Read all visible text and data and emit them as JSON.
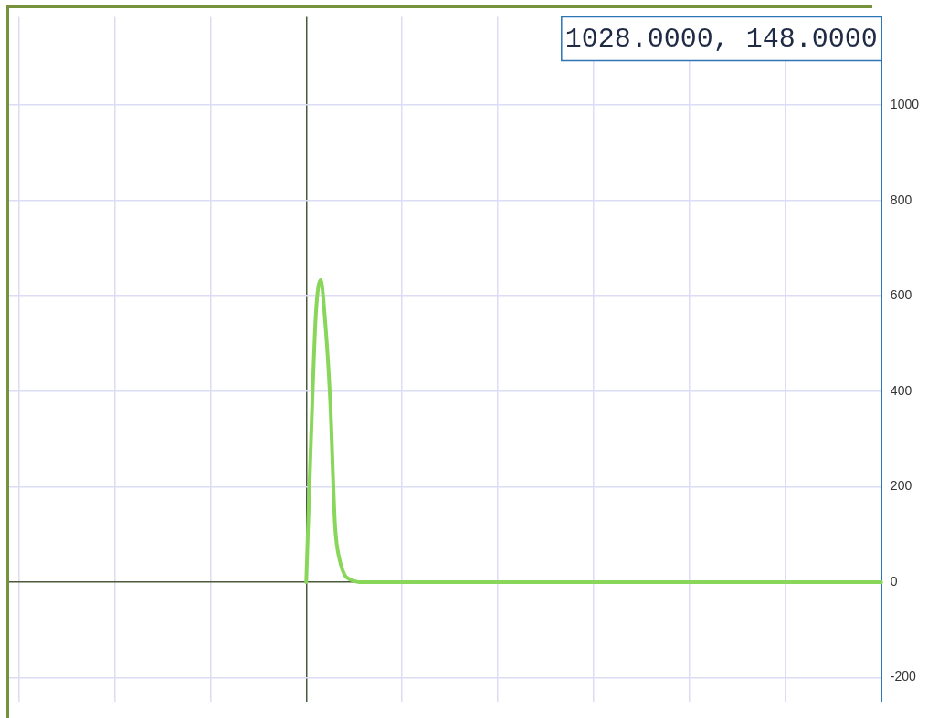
{
  "chart_data": {
    "type": "line",
    "categories": [
      null,
      null,
      null,
      null,
      null,
      null,
      null,
      null,
      null,
      null,
      null,
      null,
      null,
      null,
      null,
      null,
      null,
      null,
      null,
      null,
      null,
      null,
      null,
      null,
      null,
      null,
      null,
      null,
      null,
      null,
      null,
      null,
      null,
      null,
      null,
      null,
      null,
      null,
      null,
      null,
      null,
      null,
      null,
      null,
      null,
      null,
      null,
      null,
      null,
      null,
      null,
      null,
      null,
      null,
      null,
      null,
      null,
      null,
      null,
      null,
      null,
      null,
      null,
      null,
      null,
      null,
      null,
      null,
      null,
      null,
      null,
      null,
      null,
      null,
      null,
      null,
      null,
      null,
      null,
      null,
      null,
      null,
      null,
      null,
      null,
      null,
      null,
      null,
      null,
      null,
      null,
      null,
      null,
      null,
      null,
      null,
      null,
      null,
      null,
      null,
      null,
      null,
      null,
      null,
      null,
      null,
      null,
      null,
      null,
      null,
      null,
      null,
      null,
      null,
      null,
      null,
      null,
      null,
      null,
      null,
      null,
      null,
      null,
      null,
      null,
      null,
      null,
      null,
      null,
      null,
      null,
      null,
      null,
      null,
      null,
      null,
      null,
      null,
      null,
      null,
      null,
      null,
      null,
      null,
      null,
      null,
      null,
      null,
      null,
      null,
      null,
      null,
      null,
      null,
      null,
      null,
      null,
      null,
      null,
      null,
      null,
      null,
      null,
      null,
      null,
      null,
      null,
      null,
      null,
      null,
      null,
      null,
      null,
      null,
      null,
      null,
      null,
      null,
      null,
      null,
      null,
      null,
      null
    ],
    "series": [
      {
        "color": "#88d65a",
        "values": [
          null,
          null,
          null,
          null,
          null,
          null,
          null,
          null,
          null,
          null,
          null,
          null,
          null,
          null,
          null,
          null,
          null,
          null,
          null,
          null,
          null,
          null,
          null,
          null,
          null,
          null,
          null,
          null,
          null,
          null,
          null,
          null,
          null,
          null,
          null,
          null,
          null,
          null,
          null,
          null,
          null,
          null,
          null,
          null,
          null,
          null,
          null,
          null,
          null,
          null,
          null,
          null,
          null,
          null,
          null,
          null,
          null,
          null,
          null,
          null,
          null,
          null,
          0,
          300,
          560,
          633,
          540,
          380,
          120,
          45,
          15,
          6,
          2,
          0,
          0,
          0,
          0,
          0,
          0,
          0,
          0,
          0,
          0,
          0,
          0,
          0,
          0,
          0,
          0,
          0,
          0,
          0,
          0,
          0,
          0,
          0,
          0,
          0,
          0,
          0,
          0,
          0,
          0,
          0,
          0,
          0,
          0,
          0,
          0,
          0,
          0,
          0,
          0,
          0,
          0,
          0,
          0,
          0,
          0,
          0,
          0,
          0,
          0,
          0,
          0,
          0,
          0,
          0,
          0,
          0,
          0,
          0,
          0,
          0,
          0,
          0,
          0,
          0,
          0,
          0,
          0,
          0,
          0,
          0,
          0,
          0,
          0,
          0,
          0,
          0,
          0,
          0,
          0,
          0,
          0,
          0,
          0,
          0,
          0,
          0,
          0,
          0,
          0,
          0,
          0,
          0,
          0,
          0,
          0,
          0,
          0,
          0,
          0,
          0,
          0,
          0,
          0,
          0,
          0,
          0,
          0,
          0,
          0
        ]
      }
    ],
    "ylim": [
      -250,
      1185
    ],
    "yticks": [
      -200,
      0,
      200,
      400,
      600,
      800,
      1000
    ],
    "grid": true,
    "legend": false,
    "marker": "none",
    "line_style": "solid",
    "annotations": [
      "1028.0000, 148.0000"
    ]
  }
}
